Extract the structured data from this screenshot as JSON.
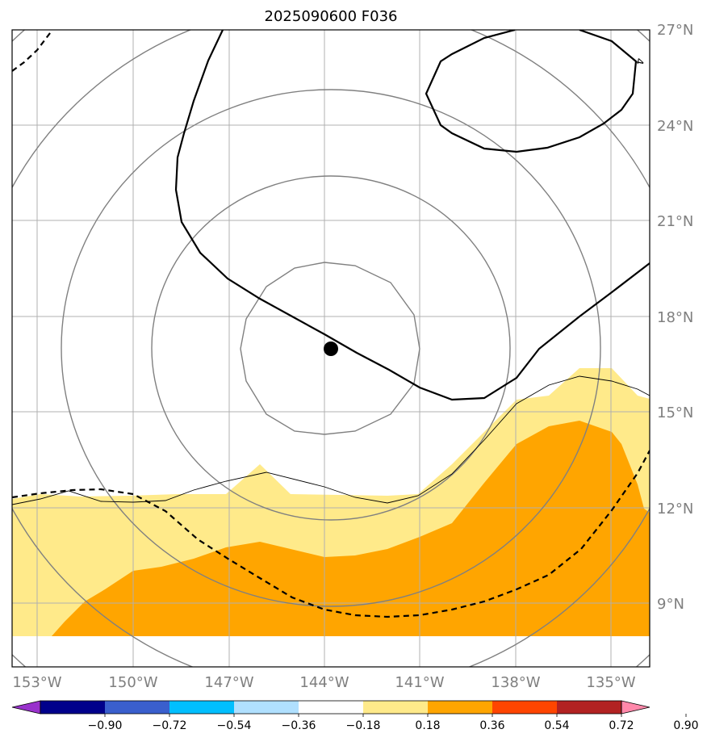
{
  "title": "2025090600 F036",
  "map": {
    "lon_range": [
      -153.8,
      -133.8
    ],
    "lat_range": [
      6.8,
      27.0
    ],
    "lat_labels": [
      "27°N",
      "24°N",
      "21°N",
      "18°N",
      "15°N",
      "12°N",
      "9°N"
    ],
    "lon_labels": [
      "153°W",
      "150°W",
      "147°W",
      "144°W",
      "141°W",
      "138°W",
      "135°W"
    ],
    "center_marker": {
      "lon": -143.8,
      "lat": 17.0
    },
    "contour_label": "4",
    "range_rings": [
      "ring-1",
      "ring-2",
      "ring-3",
      "ring-4",
      "ring-5"
    ]
  },
  "colorbar": {
    "ticks": [
      "−0.90",
      "−0.72",
      "−0.54",
      "−0.36",
      "−0.18",
      "0.18",
      "0.36",
      "0.54",
      "0.72",
      "0.90"
    ],
    "colors": [
      "#9932cc",
      "#00008b",
      "#3a5fcd",
      "#00bfff",
      "#b0e0ff",
      "#ffffff",
      "#ffea8a",
      "#ffa500",
      "#ff4500",
      "#b22222",
      "#ff88aa"
    ]
  },
  "colors": {
    "light_fill": "#ffea8a",
    "orange_fill": "#ffa500",
    "grid": "#b0b0b0",
    "rings": "#808080",
    "contour": "#000000",
    "axis_labels": "#7f7f7f"
  }
}
